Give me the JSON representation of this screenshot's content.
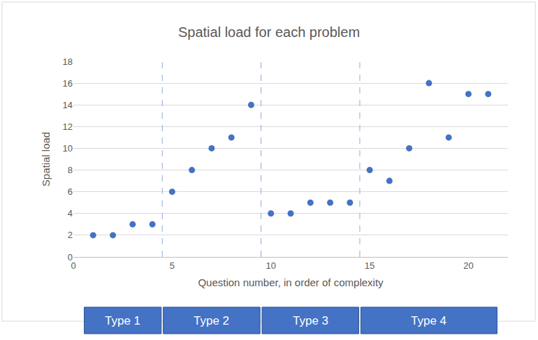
{
  "chart_data": {
    "type": "scatter",
    "title": "Spatial load for each problem",
    "x_label": "Question number, in order of complexity",
    "y_label": "Spatial load",
    "x": [
      1,
      2,
      3,
      4,
      5,
      6,
      7,
      8,
      9,
      10,
      11,
      12,
      13,
      14,
      15,
      16,
      17,
      18,
      19,
      20,
      21
    ],
    "values": [
      2,
      2,
      3,
      3,
      6,
      8,
      10,
      11,
      14,
      4,
      4,
      5,
      5,
      5,
      8,
      7,
      10,
      16,
      11,
      15,
      15
    ],
    "color": "#4472c4",
    "marker": "circle",
    "xlim": [
      0,
      22
    ],
    "xticks": [
      0,
      5,
      10,
      15,
      20
    ],
    "ylim": [
      0,
      18
    ],
    "yticks": [
      0,
      2,
      4,
      6,
      8,
      10,
      12,
      14,
      16,
      18
    ],
    "grid": true,
    "groups": [
      {
        "label": "Type 1",
        "start": 1,
        "end": 4
      },
      {
        "label": "Type 2",
        "start": 5,
        "end": 9
      },
      {
        "label": "Type 3",
        "start": 10,
        "end": 14
      },
      {
        "label": "Type 4",
        "start": 15,
        "end": 21
      }
    ]
  }
}
